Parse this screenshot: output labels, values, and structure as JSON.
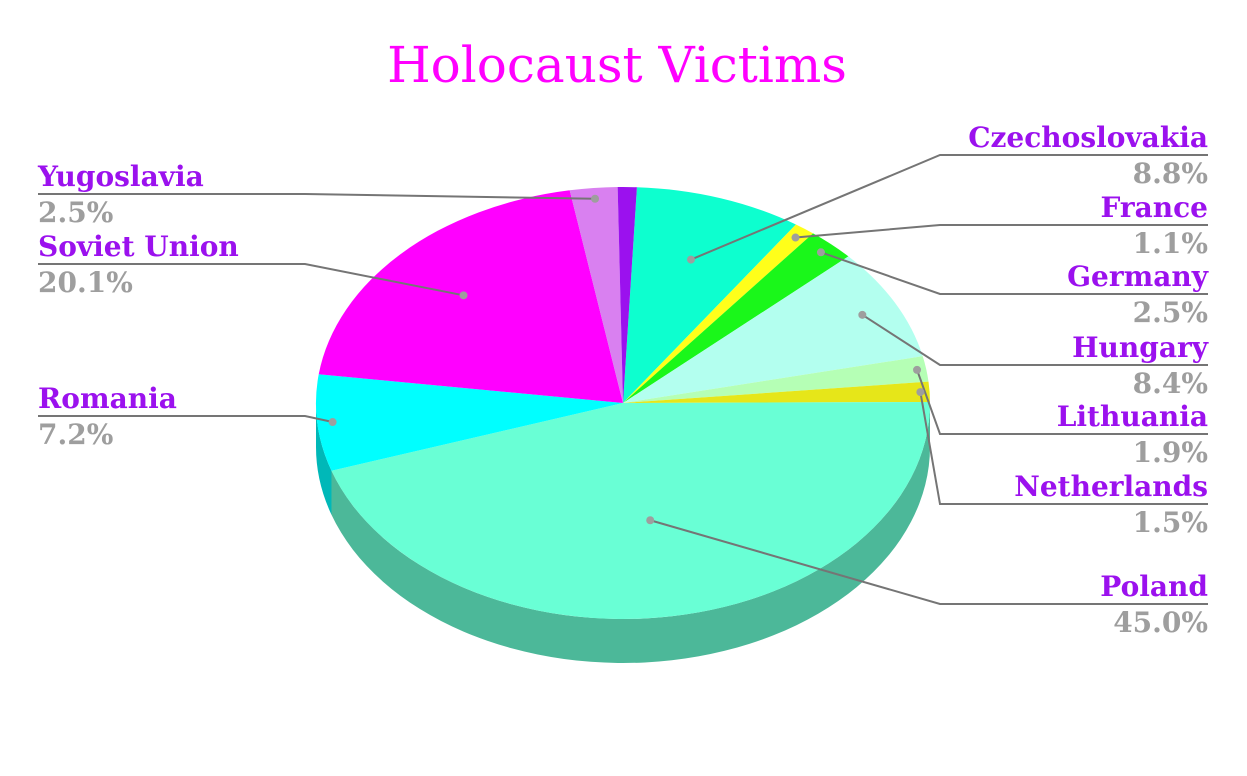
{
  "chart_data": {
    "type": "pie",
    "title": "Holocaust Victims",
    "style": "3d",
    "title_color": "#ff00ff",
    "label_color": "#9b11ee",
    "value_color": "#9e9e9e",
    "leader_color": "#757575",
    "slices": [
      {
        "label": "Yugoslavia",
        "value": 2.5,
        "display": "2.5%",
        "color": "#d980f0",
        "side": "left"
      },
      {
        "label": "Soviet Union",
        "value": 20.1,
        "display": "20.1%",
        "color": "#ff00ff",
        "side": "left"
      },
      {
        "label": "Romania",
        "value": 7.2,
        "display": "7.2%",
        "color": "#00ffff",
        "side": "left"
      },
      {
        "label": "Czechoslovakia",
        "value": 8.8,
        "display": "8.8%",
        "color": "#0dffcf",
        "side": "right"
      },
      {
        "label": "France",
        "value": 1.1,
        "display": "1.1%",
        "color": "#ffff1a",
        "side": "right"
      },
      {
        "label": "Germany",
        "value": 2.5,
        "display": "2.5%",
        "color": "#1af71a",
        "side": "right"
      },
      {
        "label": "Hungary",
        "value": 8.4,
        "display": "8.4%",
        "color": "#b3ffef",
        "side": "right"
      },
      {
        "label": "Lithuania",
        "value": 1.9,
        "display": "1.9%",
        "color": "#b5ffb5",
        "side": "right"
      },
      {
        "label": "Netherlands",
        "value": 1.5,
        "display": "1.5%",
        "color": "#e6e619",
        "side": "right"
      },
      {
        "label": "Poland",
        "value": 45.0,
        "display": "45.0%",
        "color": "#69ffd5",
        "side": "right"
      }
    ],
    "unlabeled_slice": {
      "color": "#9b11ee"
    }
  }
}
